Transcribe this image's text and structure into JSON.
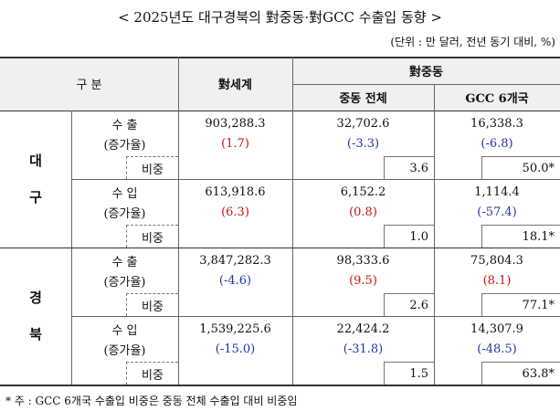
{
  "title": "< 2025년도 대구경북의 對중동·對GCC 수출입 동향 >",
  "unit": "(단위 : 만 달러, 전년 동기 대비, %)",
  "table": {
    "header": {
      "category": "구 분",
      "world": "對세계",
      "mideast_group": "對중동",
      "mideast": "중동 전체",
      "gcc": "GCC 6개국"
    },
    "regions": [
      {
        "name": "대구",
        "blocks": [
          {
            "label": "수 출",
            "rate_label": "(증가율)",
            "share_label": "비중",
            "world": "903,288.3",
            "world_rate": "(1.7)",
            "mideast": "32,702.6",
            "mideast_rate": "(-3.3)",
            "mideast_share": "3.6",
            "gcc": "16,338.3",
            "gcc_rate": "(-6.8)",
            "gcc_share": "50.0*"
          },
          {
            "label": "수 입",
            "rate_label": "(증가율)",
            "share_label": "비중",
            "world": "613,918.6",
            "world_rate": "(6.3)",
            "mideast": "6,152.2",
            "mideast_rate": "(0.8)",
            "mideast_share": "1.0",
            "gcc": "1,114.4",
            "gcc_rate": "(-57.4)",
            "gcc_share": "18.1*"
          }
        ]
      },
      {
        "name": "경북",
        "blocks": [
          {
            "label": "수 출",
            "rate_label": "(증가율)",
            "share_label": "비중",
            "world": "3,847,282.3",
            "world_rate": "(-4.6)",
            "mideast": "98,333.6",
            "mideast_rate": "(9.5)",
            "mideast_share": "2.6",
            "gcc": "75,804.3",
            "gcc_rate": "(8.1)",
            "gcc_share": "77.1*"
          },
          {
            "label": "수 입",
            "rate_label": "(증가율)",
            "share_label": "비중",
            "world": "1,539,225.6",
            "world_rate": "(-15.0)",
            "mideast": "22,424.2",
            "mideast_rate": "(-31.8)",
            "mideast_share": "1.5",
            "gcc": "14,307.9",
            "gcc_rate": "(-48.5)",
            "gcc_share": "63.8*"
          }
        ]
      }
    ]
  },
  "footnote": "* 주 : GCC 6개국 수출입 비중은 중동 전체 수출입 대비 비중임"
}
